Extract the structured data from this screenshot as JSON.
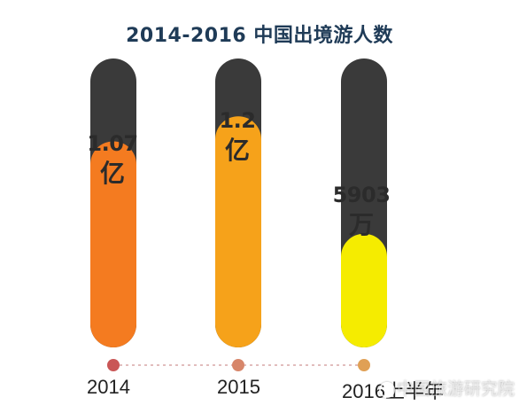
{
  "chart_data": {
    "type": "bar",
    "title": "2014-2016 中国出境游人数",
    "categories": [
      "2014",
      "2015",
      "2016上半年"
    ],
    "values": [
      1.07,
      1.2,
      0.5903
    ],
    "value_labels": [
      {
        "num": "1.07",
        "unit": "亿"
      },
      {
        "num": "1.2",
        "unit": "亿"
      },
      {
        "num": "5903",
        "unit": "万"
      }
    ],
    "unit": "亿",
    "ylim": [
      0,
      1.5
    ],
    "colors": {
      "track": "#3a3a3a",
      "bars": [
        "#f47b20",
        "#f6a21a",
        "#f5ec00"
      ],
      "dots": [
        "#c95656",
        "#d7866a",
        "#e0a055"
      ],
      "connector": "#d9a7a7"
    }
  },
  "watermark": "中国旅游研究院"
}
